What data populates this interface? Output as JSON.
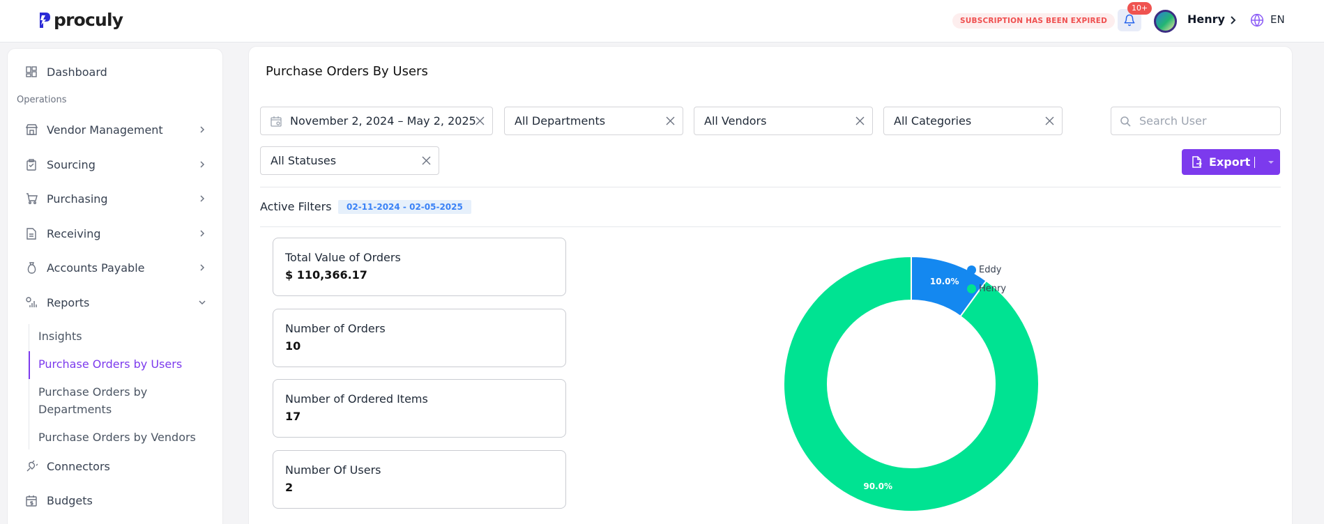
{
  "app": {
    "logo_text": "proculy",
    "subscription_notice": "SUBSCRIPTION HAS BEEN EXPIRED",
    "notification_count": "10+",
    "user_name": "Henry",
    "language": "EN"
  },
  "sidebar": {
    "section_operations": "Operations",
    "items": {
      "dashboard": "Dashboard",
      "vendor_management": "Vendor Management",
      "sourcing": "Sourcing",
      "purchasing": "Purchasing",
      "receiving": "Receiving",
      "accounts_payable": "Accounts Payable",
      "reports": "Reports",
      "connectors": "Connectors",
      "budgets": "Budgets"
    },
    "reports_sub": {
      "insights": "Insights",
      "by_users": "Purchase Orders by Users",
      "by_departments_1": "Purchase Orders by",
      "by_departments_2": "Departments",
      "by_vendors": "Purchase Orders by Vendors"
    }
  },
  "main": {
    "title": "Purchase Orders By Users",
    "filters": {
      "date_range": "November 2, 2024 – May 2, 2025",
      "departments": "All Departments",
      "vendors": "All Vendors",
      "categories": "All Categories",
      "statuses": "All Statuses"
    },
    "search_placeholder": "Search User",
    "export_label": "Export",
    "active_filters_label": "Active Filters",
    "active_filter_chip": "02-11-2024 - 02-05-2025",
    "cards": [
      {
        "label": "Total Value of Orders",
        "value": "$ 110,366.17"
      },
      {
        "label": "Number of Orders",
        "value": "10"
      },
      {
        "label": "Number of Ordered Items",
        "value": "17"
      },
      {
        "label": "Number Of Users",
        "value": "2"
      }
    ]
  },
  "colors": {
    "accent": "#7c3aed",
    "eddy": "#1488f0",
    "henry": "#00e392"
  },
  "chart_data": {
    "type": "pie",
    "donut": true,
    "series": [
      {
        "name": "Eddy",
        "value": 10.0,
        "label": "10.0%",
        "color": "#1488f0"
      },
      {
        "name": "Henry",
        "value": 90.0,
        "label": "90.0%",
        "color": "#00e392"
      }
    ],
    "legend_position": "top-right"
  }
}
